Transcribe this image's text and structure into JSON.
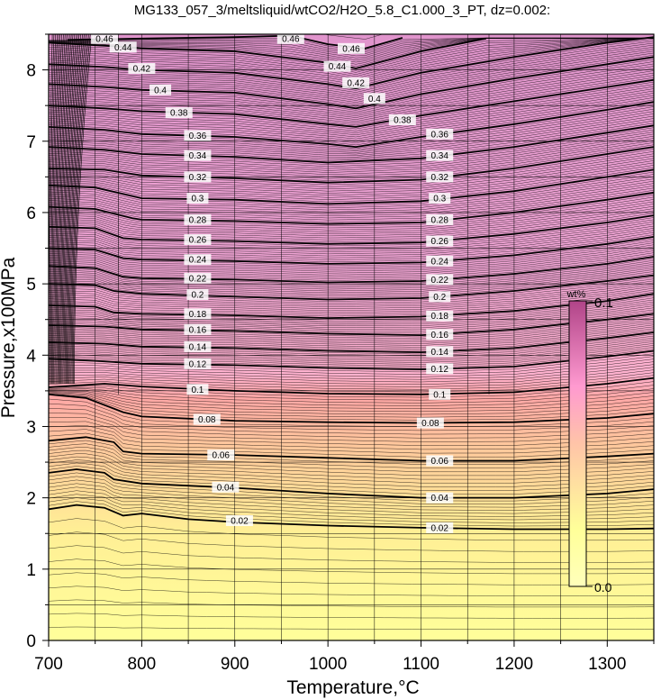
{
  "chart_data": {
    "type": "contour",
    "title": "MG133_057_3/meltsliquid/wtCO2/H2O_5.8_C1.000_3_PT, dz=0.002:",
    "xlabel": "Temperature,°C",
    "ylabel": "Pressure,x100MPa",
    "xlim": [
      700,
      1350
    ],
    "ylim": [
      0,
      8.5
    ],
    "x_ticks": [
      "700",
      "800",
      "900",
      "1000",
      "1100",
      "1200",
      "1300"
    ],
    "y_ticks": [
      "0",
      "1",
      "2",
      "3",
      "4",
      "5",
      "6",
      "7",
      "8"
    ],
    "grid": true,
    "contour_interval": 0.002,
    "colorbar": {
      "unit": "wt%",
      "min_label": "0.0",
      "max_label": "0.1",
      "min": 0.0,
      "max": 0.1,
      "colors": [
        "#5a5a00",
        "#ffff99",
        "#ffb4a0",
        "#ff99cc",
        "#993366"
      ]
    },
    "contours": [
      {
        "level": 0.02,
        "label": "0.02",
        "points": [
          [
            700,
            1.84
          ],
          [
            730,
            1.9
          ],
          [
            760,
            1.86
          ],
          [
            780,
            1.75
          ],
          [
            800,
            1.78
          ],
          [
            850,
            1.7
          ],
          [
            900,
            1.66
          ],
          [
            1000,
            1.61
          ],
          [
            1100,
            1.58
          ],
          [
            1200,
            1.56
          ],
          [
            1300,
            1.56
          ],
          [
            1350,
            1.57
          ]
        ]
      },
      {
        "level": 0.04,
        "label": "0.04",
        "points": [
          [
            700,
            2.35
          ],
          [
            730,
            2.4
          ],
          [
            760,
            2.35
          ],
          [
            770,
            2.26
          ],
          [
            800,
            2.2
          ],
          [
            900,
            2.14
          ],
          [
            1000,
            2.06
          ],
          [
            1100,
            2.0
          ],
          [
            1200,
            2.0
          ],
          [
            1300,
            2.06
          ],
          [
            1350,
            2.12
          ]
        ]
      },
      {
        "level": 0.06,
        "label": "0.06",
        "points": [
          [
            700,
            2.8
          ],
          [
            740,
            2.85
          ],
          [
            770,
            2.78
          ],
          [
            780,
            2.65
          ],
          [
            800,
            2.62
          ],
          [
            900,
            2.6
          ],
          [
            1000,
            2.56
          ],
          [
            1100,
            2.52
          ],
          [
            1200,
            2.52
          ],
          [
            1300,
            2.58
          ],
          [
            1350,
            2.62
          ]
        ]
      },
      {
        "level": 0.08,
        "label": "0.08",
        "points": [
          [
            700,
            3.45
          ],
          [
            740,
            3.4
          ],
          [
            780,
            3.2
          ],
          [
            800,
            3.14
          ],
          [
            900,
            3.08
          ],
          [
            1000,
            3.06
          ],
          [
            1100,
            3.05
          ],
          [
            1200,
            3.06
          ],
          [
            1300,
            3.12
          ],
          [
            1350,
            3.18
          ]
        ]
      },
      {
        "level": 0.1,
        "label": "0.1",
        "points": [
          [
            700,
            3.55
          ],
          [
            760,
            3.6
          ],
          [
            780,
            3.58
          ],
          [
            800,
            3.56
          ],
          [
            900,
            3.5
          ],
          [
            1000,
            3.46
          ],
          [
            1100,
            3.45
          ],
          [
            1200,
            3.48
          ],
          [
            1300,
            3.6
          ],
          [
            1350,
            3.68
          ]
        ]
      },
      {
        "level": 0.12,
        "label": "0.12",
        "points": [
          [
            700,
            3.95
          ],
          [
            750,
            3.92
          ],
          [
            800,
            3.88
          ],
          [
            900,
            3.86
          ],
          [
            1000,
            3.82
          ],
          [
            1100,
            3.8
          ],
          [
            1200,
            3.84
          ],
          [
            1300,
            3.98
          ],
          [
            1350,
            4.06
          ]
        ]
      },
      {
        "level": 0.14,
        "label": "0.14",
        "points": [
          [
            700,
            4.18
          ],
          [
            760,
            4.16
          ],
          [
            800,
            4.12
          ],
          [
            900,
            4.1
          ],
          [
            1000,
            4.06
          ],
          [
            1100,
            4.04
          ],
          [
            1200,
            4.1
          ],
          [
            1300,
            4.24
          ],
          [
            1350,
            4.32
          ]
        ]
      },
      {
        "level": 0.16,
        "label": "0.16",
        "points": [
          [
            700,
            4.42
          ],
          [
            760,
            4.4
          ],
          [
            800,
            4.36
          ],
          [
            900,
            4.34
          ],
          [
            1000,
            4.3
          ],
          [
            1100,
            4.28
          ],
          [
            1200,
            4.36
          ],
          [
            1300,
            4.5
          ],
          [
            1350,
            4.58
          ]
        ]
      },
      {
        "level": 0.18,
        "label": "0.18",
        "points": [
          [
            700,
            4.7
          ],
          [
            750,
            4.68
          ],
          [
            770,
            4.6
          ],
          [
            800,
            4.58
          ],
          [
            900,
            4.56
          ],
          [
            1000,
            4.52
          ],
          [
            1100,
            4.54
          ],
          [
            1200,
            4.62
          ],
          [
            1300,
            4.76
          ],
          [
            1350,
            4.86
          ]
        ]
      },
      {
        "level": 0.2,
        "label": "0.2",
        "points": [
          [
            700,
            5.0
          ],
          [
            750,
            4.98
          ],
          [
            770,
            4.9
          ],
          [
            800,
            4.86
          ],
          [
            900,
            4.82
          ],
          [
            1000,
            4.78
          ],
          [
            1100,
            4.8
          ],
          [
            1200,
            4.9
          ],
          [
            1300,
            5.04
          ],
          [
            1350,
            5.12
          ]
        ]
      },
      {
        "level": 0.22,
        "label": "0.22",
        "points": [
          [
            700,
            5.25
          ],
          [
            750,
            5.22
          ],
          [
            780,
            5.1
          ],
          [
            800,
            5.08
          ],
          [
            900,
            5.06
          ],
          [
            1000,
            5.02
          ],
          [
            1100,
            5.04
          ],
          [
            1200,
            5.14
          ],
          [
            1300,
            5.28
          ],
          [
            1350,
            5.38
          ]
        ]
      },
      {
        "level": 0.24,
        "label": "0.24",
        "points": [
          [
            700,
            5.5
          ],
          [
            750,
            5.48
          ],
          [
            780,
            5.36
          ],
          [
            800,
            5.34
          ],
          [
            900,
            5.32
          ],
          [
            1000,
            5.28
          ],
          [
            1100,
            5.3
          ],
          [
            1200,
            5.4
          ],
          [
            1300,
            5.56
          ],
          [
            1350,
            5.66
          ]
        ]
      },
      {
        "level": 0.26,
        "label": "0.26",
        "points": [
          [
            700,
            5.8
          ],
          [
            750,
            5.78
          ],
          [
            780,
            5.64
          ],
          [
            800,
            5.62
          ],
          [
            900,
            5.6
          ],
          [
            1000,
            5.56
          ],
          [
            1100,
            5.58
          ],
          [
            1200,
            5.7
          ],
          [
            1300,
            5.86
          ],
          [
            1350,
            5.96
          ]
        ]
      },
      {
        "level": 0.28,
        "label": "0.28",
        "points": [
          [
            700,
            6.08
          ],
          [
            750,
            6.05
          ],
          [
            790,
            5.92
          ],
          [
            800,
            5.9
          ],
          [
            900,
            5.88
          ],
          [
            1000,
            5.84
          ],
          [
            1100,
            5.86
          ],
          [
            1200,
            6.0
          ],
          [
            1300,
            6.18
          ],
          [
            1350,
            6.28
          ]
        ]
      },
      {
        "level": 0.3,
        "label": "0.3",
        "points": [
          [
            700,
            6.38
          ],
          [
            750,
            6.35
          ],
          [
            800,
            6.2
          ],
          [
            900,
            6.18
          ],
          [
            1000,
            6.12
          ],
          [
            1100,
            6.16
          ],
          [
            1200,
            6.3
          ],
          [
            1300,
            6.5
          ],
          [
            1350,
            6.6
          ]
        ]
      },
      {
        "level": 0.32,
        "label": "0.32",
        "points": [
          [
            700,
            6.62
          ],
          [
            760,
            6.6
          ],
          [
            800,
            6.52
          ],
          [
            900,
            6.48
          ],
          [
            1000,
            6.42
          ],
          [
            1100,
            6.46
          ],
          [
            1200,
            6.62
          ],
          [
            1300,
            6.82
          ],
          [
            1350,
            6.92
          ]
        ]
      },
      {
        "level": 0.34,
        "label": "0.34",
        "points": [
          [
            700,
            6.92
          ],
          [
            760,
            6.88
          ],
          [
            800,
            6.82
          ],
          [
            900,
            6.78
          ],
          [
            1000,
            6.7
          ],
          [
            1100,
            6.76
          ],
          [
            1200,
            6.92
          ],
          [
            1300,
            7.12
          ],
          [
            1350,
            7.22
          ]
        ]
      },
      {
        "level": 0.36,
        "label": "0.36",
        "points": [
          [
            700,
            7.2
          ],
          [
            760,
            7.16
          ],
          [
            800,
            7.1
          ],
          [
            900,
            7.06
          ],
          [
            1000,
            6.96
          ],
          [
            1030,
            6.92
          ],
          [
            1100,
            7.06
          ],
          [
            1200,
            7.24
          ],
          [
            1300,
            7.44
          ],
          [
            1350,
            7.55
          ]
        ]
      },
      {
        "level": 0.38,
        "label": "0.38",
        "points": [
          [
            700,
            7.5
          ],
          [
            760,
            7.46
          ],
          [
            800,
            7.42
          ],
          [
            900,
            7.38
          ],
          [
            1000,
            7.24
          ],
          [
            1030,
            7.2
          ],
          [
            1100,
            7.36
          ],
          [
            1200,
            7.56
          ],
          [
            1300,
            7.76
          ],
          [
            1350,
            7.86
          ]
        ]
      },
      {
        "level": 0.4,
        "label": "0.4",
        "points": [
          [
            700,
            7.8
          ],
          [
            760,
            7.76
          ],
          [
            800,
            7.72
          ],
          [
            900,
            7.68
          ],
          [
            1000,
            7.52
          ],
          [
            1030,
            7.46
          ],
          [
            1100,
            7.66
          ],
          [
            1200,
            7.88
          ],
          [
            1300,
            8.08
          ],
          [
            1350,
            8.18
          ]
        ]
      },
      {
        "level": 0.42,
        "label": "0.42",
        "points": [
          [
            700,
            8.08
          ],
          [
            760,
            8.04
          ],
          [
            800,
            8.0
          ],
          [
            900,
            7.96
          ],
          [
            1000,
            7.8
          ],
          [
            1030,
            7.74
          ],
          [
            1100,
            7.96
          ],
          [
            1200,
            8.18
          ],
          [
            1300,
            8.38
          ],
          [
            1350,
            8.46
          ]
        ]
      },
      {
        "level": 0.44,
        "label": "0.44",
        "points": [
          [
            700,
            8.38
          ],
          [
            760,
            8.34
          ],
          [
            800,
            8.3
          ],
          [
            900,
            8.26
          ],
          [
            1000,
            8.1
          ],
          [
            1030,
            8.02
          ],
          [
            1100,
            8.26
          ],
          [
            1170,
            8.44
          ]
        ]
      },
      {
        "level": 0.46,
        "label": "0.46",
        "points": [
          [
            720,
            8.42
          ],
          [
            800,
            8.44
          ],
          [
            900,
            8.46
          ],
          [
            960,
            8.48
          ],
          [
            1000,
            8.36
          ],
          [
            1040,
            8.3
          ],
          [
            1080,
            8.45
          ]
        ]
      }
    ],
    "contour_label_positions": [
      {
        "label": "0.02",
        "x": 905,
        "y": 1.68
      },
      {
        "label": "0.02",
        "x": 1120,
        "y": 1.58
      },
      {
        "label": "0.04",
        "x": 890,
        "y": 2.15
      },
      {
        "label": "0.04",
        "x": 1120,
        "y": 2.0
      },
      {
        "label": "0.06",
        "x": 885,
        "y": 2.6
      },
      {
        "label": "0.06",
        "x": 1120,
        "y": 2.52
      },
      {
        "label": "0.08",
        "x": 870,
        "y": 3.1
      },
      {
        "label": "0.08",
        "x": 1110,
        "y": 3.05
      },
      {
        "label": "0.1",
        "x": 860,
        "y": 3.52
      },
      {
        "label": "0.1",
        "x": 1120,
        "y": 3.45
      },
      {
        "label": "0.12",
        "x": 860,
        "y": 3.88
      },
      {
        "label": "0.12",
        "x": 1120,
        "y": 3.81
      },
      {
        "label": "0.14",
        "x": 860,
        "y": 4.12
      },
      {
        "label": "0.14",
        "x": 1120,
        "y": 4.05
      },
      {
        "label": "0.16",
        "x": 860,
        "y": 4.36
      },
      {
        "label": "0.16",
        "x": 1120,
        "y": 4.29
      },
      {
        "label": "0.18",
        "x": 860,
        "y": 4.58
      },
      {
        "label": "0.18",
        "x": 1120,
        "y": 4.55
      },
      {
        "label": "0.2",
        "x": 860,
        "y": 4.85
      },
      {
        "label": "0.2",
        "x": 1120,
        "y": 4.82
      },
      {
        "label": "0.22",
        "x": 860,
        "y": 5.08
      },
      {
        "label": "0.22",
        "x": 1120,
        "y": 5.06
      },
      {
        "label": "0.24",
        "x": 860,
        "y": 5.34
      },
      {
        "label": "0.24",
        "x": 1120,
        "y": 5.32
      },
      {
        "label": "0.26",
        "x": 860,
        "y": 5.62
      },
      {
        "label": "0.26",
        "x": 1120,
        "y": 5.6
      },
      {
        "label": "0.28",
        "x": 860,
        "y": 5.9
      },
      {
        "label": "0.28",
        "x": 1120,
        "y": 5.9
      },
      {
        "label": "0.3",
        "x": 860,
        "y": 6.2
      },
      {
        "label": "0.3",
        "x": 1120,
        "y": 6.2
      },
      {
        "label": "0.32",
        "x": 860,
        "y": 6.5
      },
      {
        "label": "0.32",
        "x": 1120,
        "y": 6.5
      },
      {
        "label": "0.34",
        "x": 860,
        "y": 6.8
      },
      {
        "label": "0.34",
        "x": 1120,
        "y": 6.8
      },
      {
        "label": "0.36",
        "x": 860,
        "y": 7.08
      },
      {
        "label": "0.36",
        "x": 1120,
        "y": 7.1
      },
      {
        "label": "0.38",
        "x": 840,
        "y": 7.4
      },
      {
        "label": "0.38",
        "x": 1080,
        "y": 7.3
      },
      {
        "label": "0.4",
        "x": 820,
        "y": 7.72
      },
      {
        "label": "0.4",
        "x": 1050,
        "y": 7.6
      },
      {
        "label": "0.42",
        "x": 800,
        "y": 8.02
      },
      {
        "label": "0.42",
        "x": 1030,
        "y": 7.82
      },
      {
        "label": "0.44",
        "x": 780,
        "y": 8.32
      },
      {
        "label": "0.44",
        "x": 1010,
        "y": 8.05
      },
      {
        "label": "0.46",
        "x": 760,
        "y": 8.44
      },
      {
        "label": "0.46",
        "x": 960,
        "y": 8.44
      },
      {
        "label": "0.46",
        "x": 1025,
        "y": 8.3
      }
    ]
  }
}
